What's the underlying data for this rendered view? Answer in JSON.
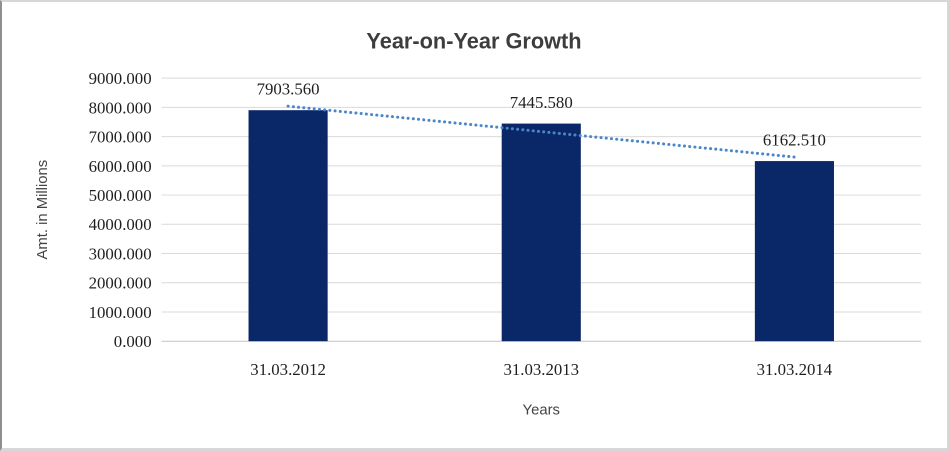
{
  "chart_data": {
    "type": "bar",
    "title": "Year-on-Year Growth",
    "xlabel": "Years",
    "ylabel": "Amt. in Millions",
    "categories": [
      "31.03.2012",
      "31.03.2013",
      "31.03.2014"
    ],
    "values": [
      7903.56,
      7445.58,
      6162.51
    ],
    "data_labels": [
      "7903.560",
      "7445.580",
      "6162.510"
    ],
    "ylim": [
      0,
      9000
    ],
    "ytick_values": [
      0,
      1000,
      2000,
      3000,
      4000,
      5000,
      6000,
      7000,
      8000,
      9000
    ],
    "ytick_labels": [
      "0.000",
      "1000.000",
      "2000.000",
      "3000.000",
      "4000.000",
      "5000.000",
      "6000.000",
      "7000.000",
      "8000.000",
      "9000.000"
    ],
    "grid": true,
    "legend": "none",
    "trendline": {
      "type": "linear",
      "style": "dotted"
    },
    "colors": {
      "bar": "#0a2767",
      "trendline": "#4a86c8",
      "gridline": "#d9d9d9",
      "axis_line": "#c3c3c3",
      "title_text": "#3d3d3d",
      "axis_title_text": "#444444",
      "tick_text": "#1f1f1f"
    }
  }
}
